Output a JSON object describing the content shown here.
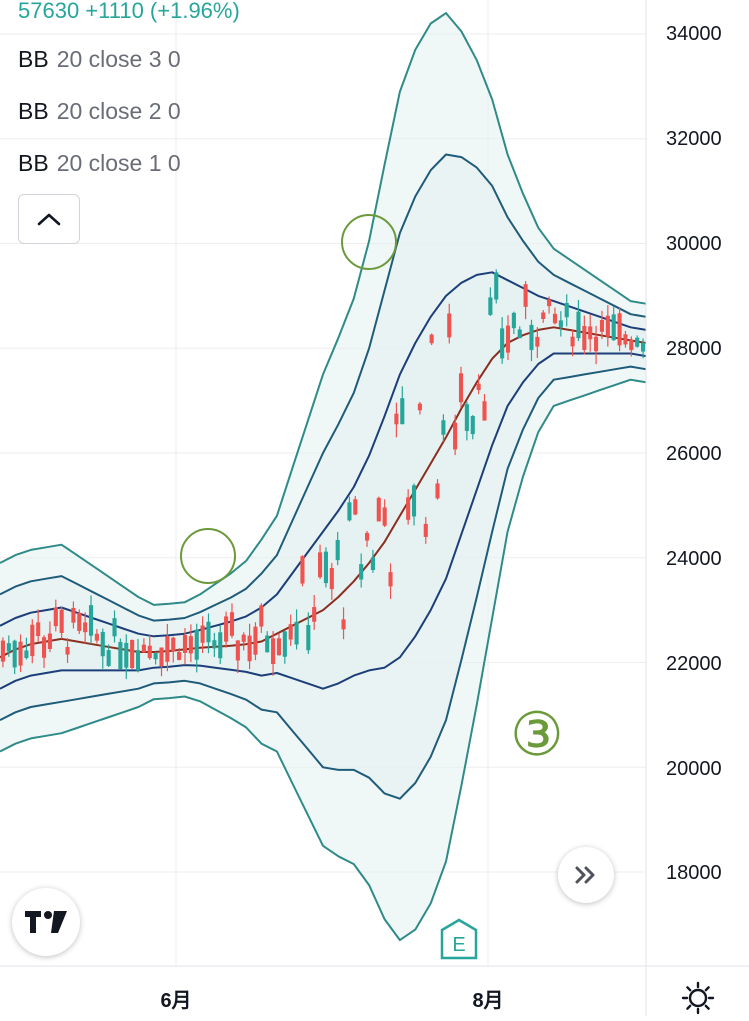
{
  "header": {
    "quote_text": "57630 +1110 (+1.96%)"
  },
  "indicators": [
    {
      "name": "BB",
      "params": "20 close 3 0"
    },
    {
      "name": "BB",
      "params": "20 close 2 0"
    },
    {
      "name": "BB",
      "params": "20 close 1 0"
    }
  ],
  "annotation": {
    "label": "③",
    "color": "#6b9a3a"
  },
  "colors": {
    "up": "#26a69a",
    "down": "#ef5350",
    "basis": "#8b2e1f",
    "band_outer": "#2e8b88",
    "band_mid": "#1f5c7a",
    "band_inner": "#1c3f7a",
    "fill": "#e4f0f0",
    "grid": "#eeeeee"
  },
  "icons": {
    "collapse": "chevron-up-icon",
    "scroll": "double-chevron-right-icon",
    "logo": "tradingview-logo",
    "earnings": "earnings-e-icon",
    "settings": "gear-icon"
  },
  "chart_data": {
    "type": "candlestick",
    "title": "",
    "xlabel": "",
    "ylabel": "",
    "ylim": [
      16400,
      35000
    ],
    "y_ticks": [
      18000,
      20000,
      22000,
      24000,
      26000,
      28000,
      30000,
      32000,
      34000
    ],
    "x_ticks": [
      "6月",
      "8月"
    ],
    "grid": true,
    "legend": "top-left",
    "candles": [],
    "bands": {
      "basis": [
        22100,
        22250,
        22350,
        22400,
        22450,
        22400,
        22350,
        22300,
        22250,
        22200,
        22200,
        22220,
        22250,
        22280,
        22300,
        22320,
        22350,
        22400,
        22550,
        22700,
        22850,
        23000,
        23250,
        23550,
        23900,
        24300,
        24800,
        25300,
        25800,
        26300,
        26850,
        27350,
        27800,
        28100,
        28250,
        28350,
        28400,
        28350,
        28300,
        28250,
        28200,
        28150,
        28100
      ],
      "upper1": [
        22700,
        22850,
        22950,
        23000,
        23050,
        22950,
        22850,
        22750,
        22650,
        22550,
        22500,
        22520,
        22550,
        22620,
        22700,
        22780,
        22880,
        23050,
        23300,
        23700,
        24100,
        24500,
        24900,
        25350,
        25950,
        26700,
        27500,
        28100,
        28600,
        29000,
        29250,
        29400,
        29450,
        29300,
        29150,
        29000,
        28900,
        28800,
        28700,
        28600,
        28500,
        28400,
        28350
      ],
      "lower1": [
        21500,
        21650,
        21750,
        21800,
        21850,
        21850,
        21850,
        21850,
        21850,
        21850,
        21900,
        21920,
        21950,
        21940,
        21900,
        21860,
        21820,
        21750,
        21800,
        21700,
        21600,
        21500,
        21600,
        21750,
        21850,
        21900,
        22100,
        22500,
        23000,
        23600,
        24450,
        25300,
        26150,
        26900,
        27350,
        27700,
        27900,
        27900,
        27900,
        27900,
        27900,
        27900,
        27850
      ],
      "upper2": [
        23300,
        23450,
        23550,
        23600,
        23650,
        23500,
        23350,
        23200,
        23050,
        22900,
        22800,
        22820,
        22850,
        22960,
        23100,
        23240,
        23410,
        23700,
        24050,
        24700,
        25350,
        26000,
        26550,
        27150,
        28000,
        29100,
        30200,
        30900,
        31400,
        31700,
        31650,
        31450,
        31100,
        30500,
        30050,
        29650,
        29400,
        29250,
        29100,
        28950,
        28800,
        28650,
        28600
      ],
      "lower2": [
        20900,
        21050,
        21150,
        21200,
        21250,
        21300,
        21350,
        21400,
        21450,
        21500,
        21600,
        21620,
        21650,
        21600,
        21500,
        21400,
        21290,
        21100,
        21050,
        20700,
        20350,
        20000,
        19950,
        19950,
        19800,
        19500,
        19400,
        19700,
        20200,
        20900,
        22050,
        23250,
        24500,
        25700,
        26450,
        27050,
        27400,
        27450,
        27500,
        27550,
        27600,
        27650,
        27600
      ],
      "upper3": [
        23900,
        24050,
        24150,
        24200,
        24250,
        24050,
        23850,
        23650,
        23450,
        23250,
        23100,
        23120,
        23150,
        23300,
        23500,
        23700,
        23940,
        24350,
        24800,
        25700,
        26600,
        27500,
        28200,
        28950,
        30050,
        31500,
        32900,
        33700,
        34200,
        34400,
        34050,
        33500,
        32750,
        31700,
        30950,
        30300,
        29900,
        29700,
        29500,
        29300,
        29100,
        28900,
        28850
      ],
      "lower3": [
        20300,
        20450,
        20550,
        20600,
        20650,
        20750,
        20850,
        20950,
        21050,
        21150,
        21300,
        21320,
        21350,
        21260,
        21100,
        20940,
        20760,
        20450,
        20300,
        19700,
        19100,
        18500,
        18300,
        18150,
        17750,
        17100,
        16700,
        16900,
        17400,
        18200,
        19650,
        21200,
        22850,
        24500,
        25550,
        26400,
        26900,
        27000,
        27100,
        27200,
        27300,
        27400,
        27350
      ]
    }
  }
}
